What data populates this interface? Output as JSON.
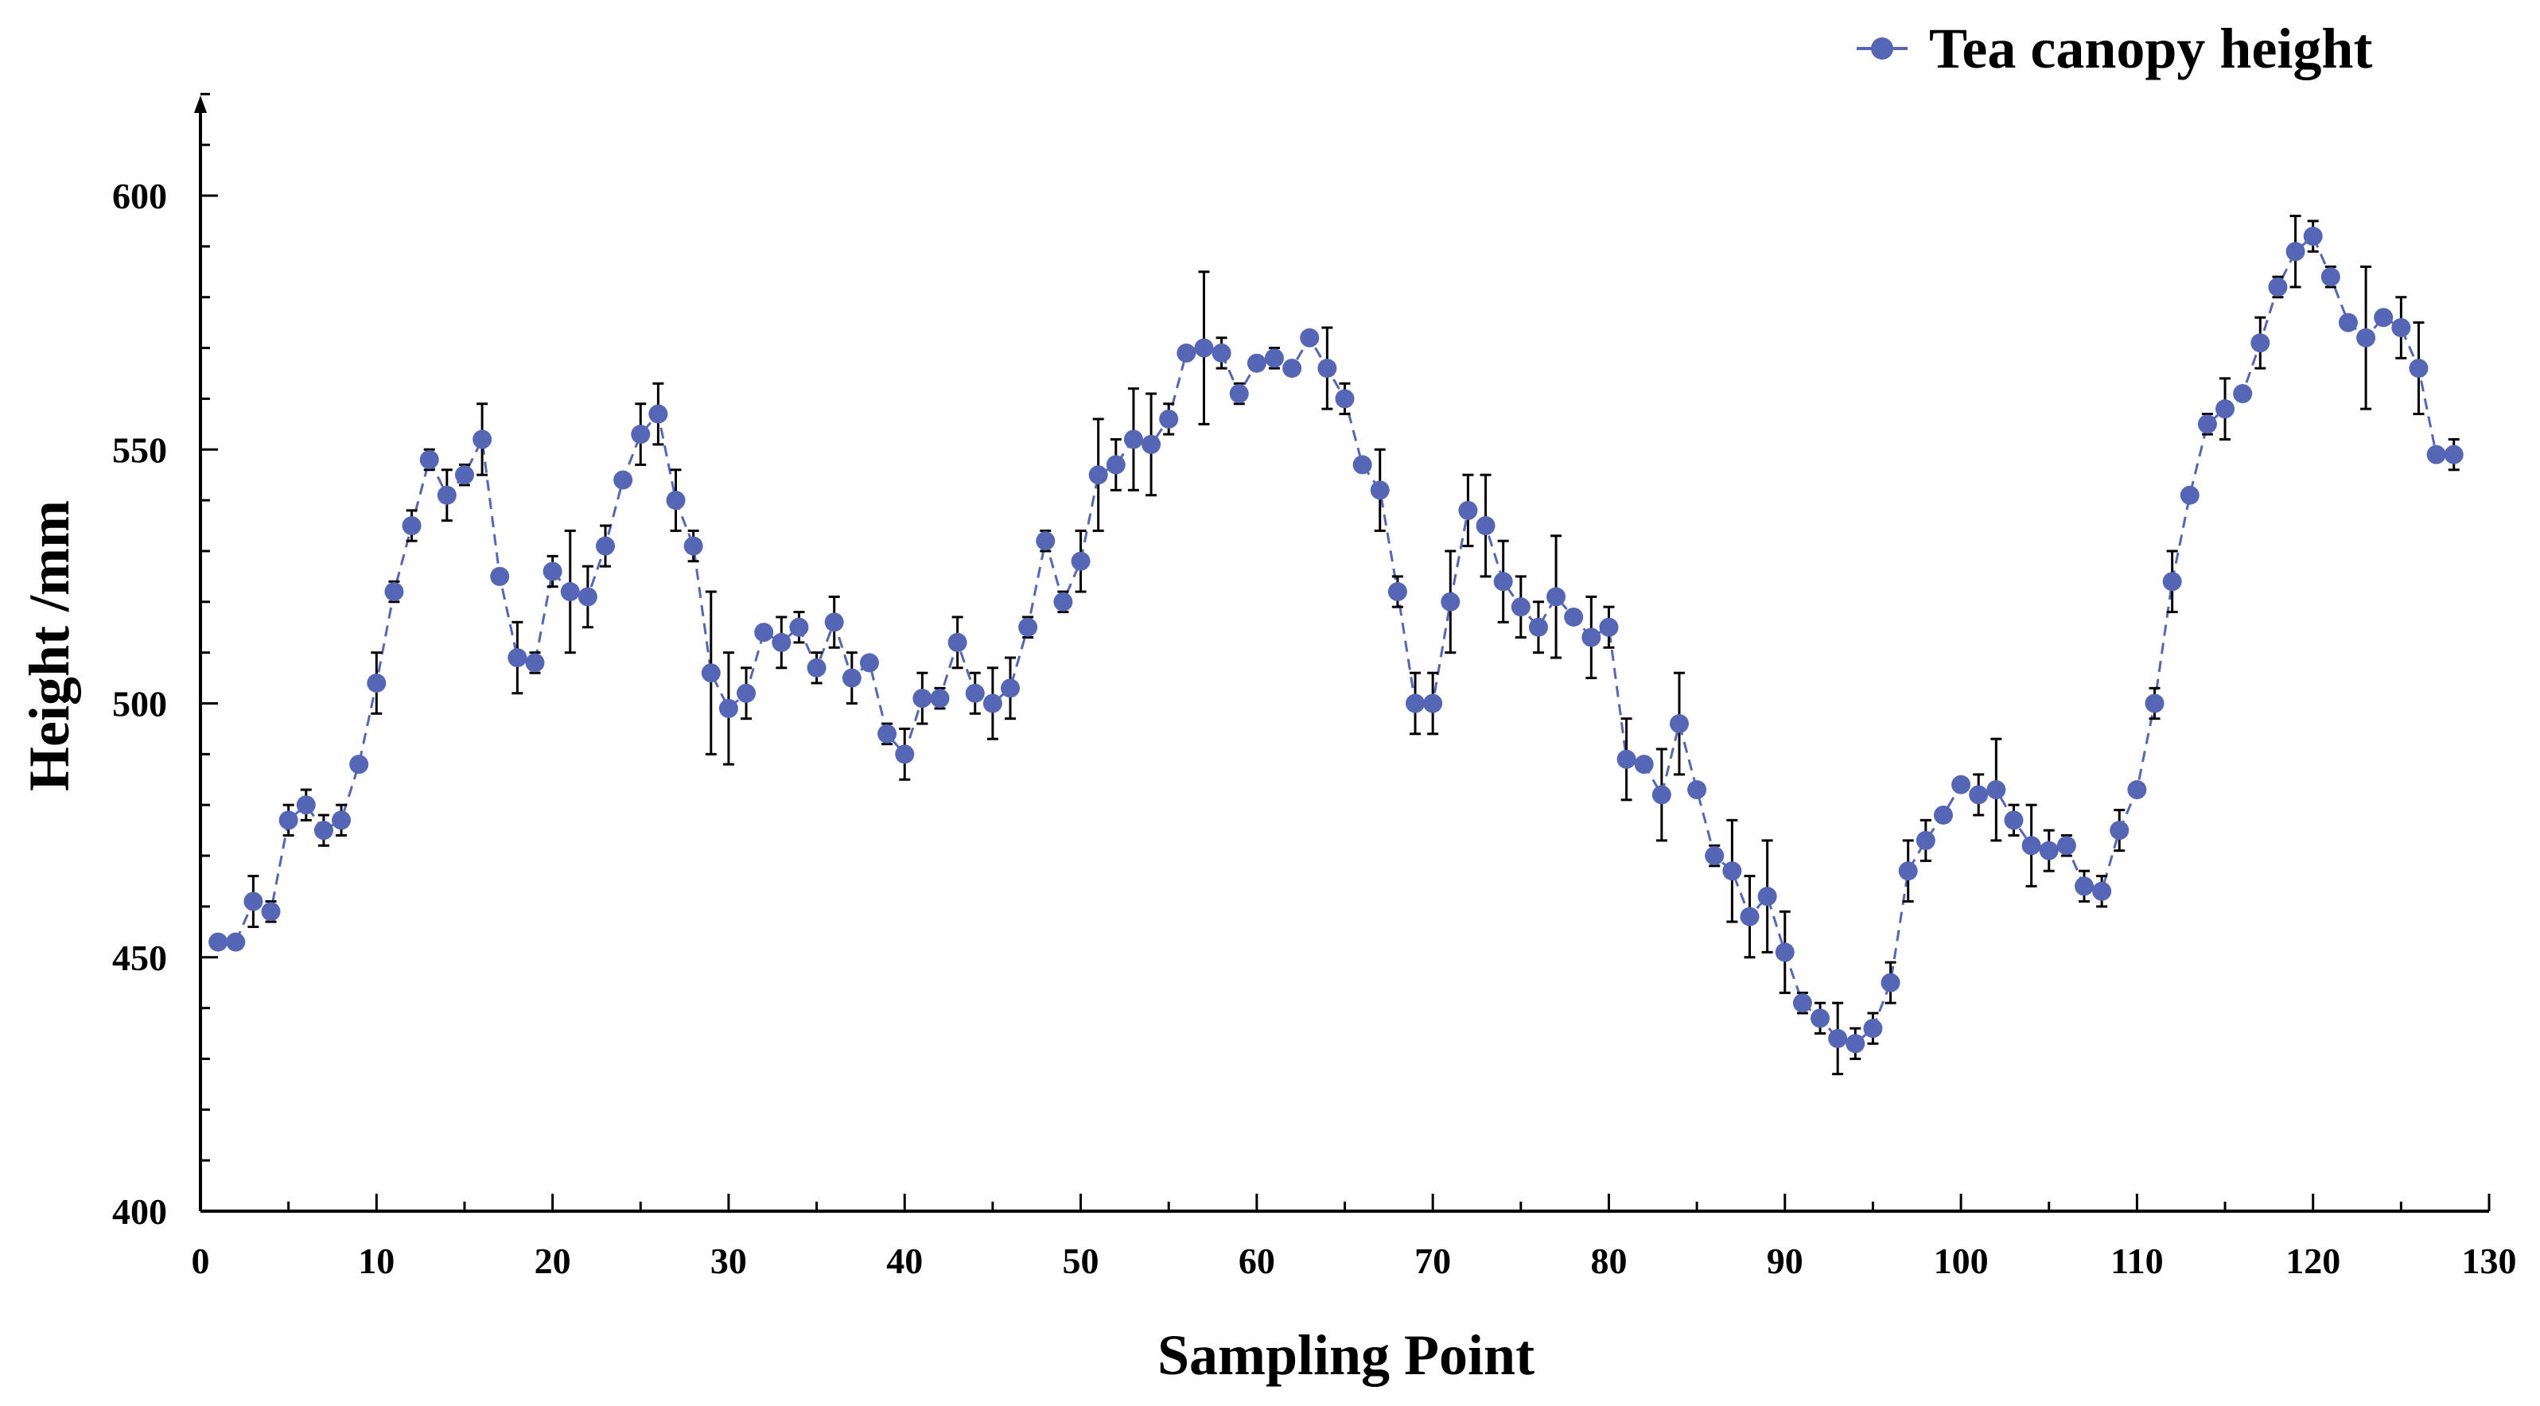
{
  "chart_data": {
    "type": "scatter",
    "xlabel": "Sampling Point",
    "ylabel": "Height /mm",
    "xlim": [
      0,
      130
    ],
    "ylim": [
      400,
      620
    ],
    "x_ticks": [
      0,
      10,
      20,
      30,
      40,
      50,
      60,
      70,
      80,
      90,
      100,
      110,
      120,
      130
    ],
    "y_ticks": [
      400,
      450,
      500,
      550,
      600
    ],
    "legend": "top-right",
    "grid": false,
    "colors": {
      "series": "#5566b5",
      "line": "#5566b5",
      "error_bar": "#000000",
      "axis": "#000000"
    },
    "series": [
      {
        "name": "Tea canopy height",
        "x": [
          1,
          2,
          3,
          4,
          5,
          6,
          7,
          8,
          9,
          10,
          11,
          12,
          13,
          14,
          15,
          16,
          17,
          18,
          19,
          20,
          21,
          22,
          23,
          24,
          25,
          26,
          27,
          28,
          29,
          30,
          31,
          32,
          33,
          34,
          35,
          36,
          37,
          38,
          39,
          40,
          41,
          42,
          43,
          44,
          45,
          46,
          47,
          48,
          49,
          50,
          51,
          52,
          53,
          54,
          55,
          56,
          57,
          58,
          59,
          60,
          61,
          62,
          63,
          64,
          65,
          66,
          67,
          68,
          69,
          70,
          71,
          72,
          73,
          74,
          75,
          76,
          77,
          78,
          79,
          80,
          81,
          82,
          83,
          84,
          85,
          86,
          87,
          88,
          89,
          90,
          91,
          92,
          93,
          94,
          95,
          96,
          97,
          98,
          99,
          100,
          101,
          102,
          103,
          104,
          105,
          106,
          107,
          108,
          109,
          110,
          111,
          112,
          113,
          114,
          115,
          116,
          117,
          118,
          119,
          120,
          121,
          122,
          123,
          124,
          125,
          126,
          127,
          128
        ],
        "y": [
          453,
          453,
          461,
          459,
          477,
          480,
          475,
          477,
          488,
          504,
          522,
          535,
          548,
          541,
          545,
          552,
          525,
          509,
          508,
          526,
          522,
          521,
          531,
          544,
          553,
          557,
          540,
          531,
          506,
          499,
          502,
          514,
          512,
          515,
          507,
          516,
          505,
          508,
          494,
          490,
          501,
          501,
          512,
          502,
          500,
          503,
          515,
          532,
          520,
          528,
          545,
          547,
          552,
          551,
          556,
          569,
          570,
          569,
          561,
          567,
          568,
          566,
          572,
          566,
          560,
          547,
          542,
          522,
          500,
          500,
          520,
          538,
          535,
          524,
          519,
          515,
          521,
          517,
          513,
          515,
          489,
          488,
          482,
          496,
          483,
          470,
          467,
          458,
          462,
          451,
          441,
          438,
          434,
          433,
          436,
          445,
          467,
          473,
          478,
          484,
          482,
          483,
          477,
          472,
          471,
          472,
          464,
          463,
          475,
          483,
          500,
          524,
          541,
          555,
          558,
          561,
          571,
          582,
          589,
          592,
          584,
          575,
          572,
          576,
          574,
          566,
          549,
          549
        ],
        "error": [
          0,
          0,
          5,
          2,
          3,
          3,
          3,
          3,
          0,
          6,
          2,
          3,
          2,
          5,
          2,
          7,
          0,
          7,
          2,
          3,
          12,
          6,
          4,
          0,
          6,
          6,
          6,
          3,
          16,
          11,
          5,
          0,
          5,
          3,
          3,
          5,
          5,
          0,
          2,
          5,
          5,
          2,
          5,
          4,
          7,
          6,
          2,
          2,
          2,
          6,
          11,
          5,
          10,
          10,
          3,
          0,
          15,
          3,
          2,
          0,
          2,
          0,
          0,
          8,
          3,
          0,
          8,
          3,
          6,
          6,
          10,
          7,
          10,
          8,
          6,
          5,
          12,
          0,
          8,
          4,
          8,
          0,
          9,
          10,
          0,
          2,
          10,
          8,
          11,
          8,
          2,
          3,
          7,
          3,
          3,
          4,
          6,
          4,
          0,
          0,
          4,
          10,
          3,
          8,
          4,
          2,
          3,
          3,
          4,
          0,
          3,
          6,
          0,
          2,
          6,
          0,
          5,
          2,
          7,
          3,
          2,
          0,
          14,
          0,
          6,
          9,
          0,
          3
        ]
      }
    ]
  }
}
